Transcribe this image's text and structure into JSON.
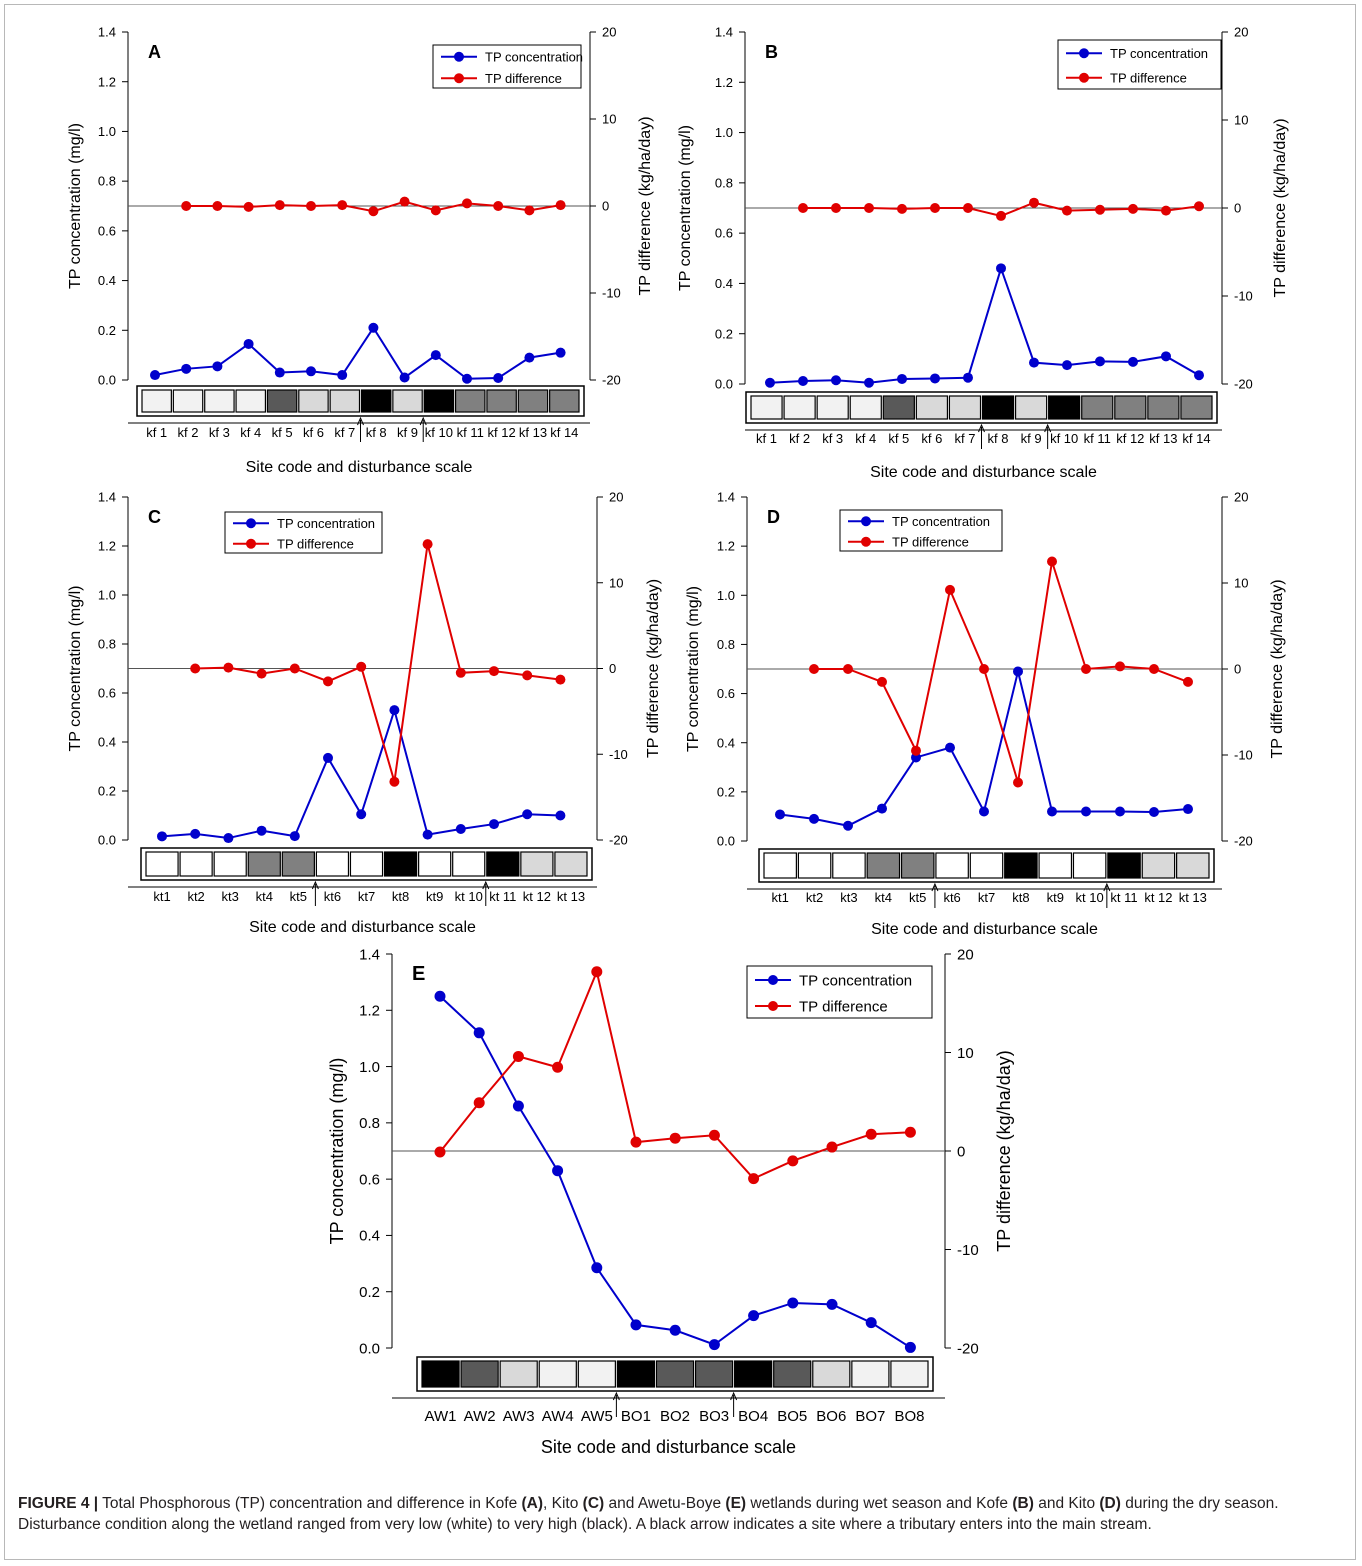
{
  "chart_data": [
    {
      "panel": "A",
      "type": "line",
      "ylabel_left": "TP concentration (mg/l)",
      "ylabel_right": "TP difference (kg/ha/day)",
      "xlabel": "Site code and disturbance scale",
      "ylim_left": [
        0,
        1.4
      ],
      "ylim_right": [
        -20,
        20
      ],
      "yticks_left": [
        "0.0",
        "0.2",
        "0.4",
        "0.6",
        "0.8",
        "1.0",
        "1.2",
        "1.4"
      ],
      "yticks_right": [
        "-20",
        "-10",
        "0",
        "10",
        "20"
      ],
      "legend_position": "top-right",
      "categories": [
        "kf 1",
        "kf 2",
        "kf 3",
        "kf 4",
        "kf 5",
        "kf 6",
        "kf 7",
        "kf 8",
        "kf 9",
        "kf 10",
        "kf 11",
        "kf 12",
        "kf 13",
        "kf 14"
      ],
      "series": [
        {
          "name": "TP concentration",
          "color": "#0000cc",
          "axis": "left",
          "values": [
            0.02,
            0.045,
            0.055,
            0.145,
            0.03,
            0.035,
            0.02,
            0.21,
            0.01,
            0.1,
            0.005,
            0.008,
            0.09,
            0.11
          ]
        },
        {
          "name": "TP difference",
          "color": "#e00000",
          "axis": "right",
          "values": [
            null,
            0,
            0,
            -0.1,
            0.1,
            0,
            0.1,
            -0.6,
            0.5,
            -0.5,
            0.3,
            0,
            -0.5,
            0.1
          ]
        }
      ],
      "disturbance": [
        "#f2f2f2",
        "#f2f2f2",
        "#f2f2f2",
        "#f2f2f2",
        "#595959",
        "#d9d9d9",
        "#d9d9d9",
        "#000000",
        "#d9d9d9",
        "#000000",
        "#808080",
        "#808080",
        "#808080",
        "#808080"
      ],
      "tributary_after": [
        7,
        9
      ]
    },
    {
      "panel": "B",
      "type": "line",
      "ylabel_left": "TP concentration (mg/l)",
      "ylabel_right": "TP difference (kg/ha/day)",
      "xlabel": "Site code and disturbance scale",
      "ylim_left": [
        0,
        1.4
      ],
      "ylim_right": [
        -20,
        20
      ],
      "yticks_left": [
        "0.0",
        "0.2",
        "0.4",
        "0.6",
        "0.8",
        "1.0",
        "1.2",
        "1.4"
      ],
      "yticks_right": [
        "-20",
        "-10",
        "0",
        "10",
        "20"
      ],
      "legend_position": "top-right",
      "categories": [
        "kf 1",
        "kf 2",
        "kf 3",
        "kf 4",
        "kf 5",
        "kf 6",
        "kf 7",
        "kf 8",
        "kf 9",
        "kf 10",
        "kf 11",
        "kf 12",
        "kf 13",
        "kf 14"
      ],
      "series": [
        {
          "name": "TP concentration",
          "color": "#0000cc",
          "axis": "left",
          "values": [
            0.005,
            0.012,
            0.015,
            0.005,
            0.02,
            0.022,
            0.025,
            0.46,
            0.085,
            0.075,
            0.09,
            0.088,
            0.11,
            0.035
          ]
        },
        {
          "name": "TP difference",
          "color": "#e00000",
          "axis": "right",
          "values": [
            null,
            0,
            0,
            0,
            -0.1,
            0,
            0,
            -0.9,
            0.6,
            -0.3,
            -0.2,
            -0.1,
            -0.3,
            0.2
          ]
        }
      ],
      "disturbance": [
        "#f2f2f2",
        "#f2f2f2",
        "#f2f2f2",
        "#f2f2f2",
        "#595959",
        "#d9d9d9",
        "#d9d9d9",
        "#000000",
        "#d9d9d9",
        "#000000",
        "#808080",
        "#808080",
        "#808080",
        "#808080"
      ],
      "tributary_after": [
        7,
        9
      ]
    },
    {
      "panel": "C",
      "type": "line",
      "ylabel_left": "TP concentration (mg/l)",
      "ylabel_right": "TP difference (kg/ha/day)",
      "xlabel": "Site code and disturbance scale",
      "ylim_left": [
        0,
        1.4
      ],
      "ylim_right": [
        -20,
        20
      ],
      "yticks_left": [
        "0.0",
        "0.2",
        "0.4",
        "0.6",
        "0.8",
        "1.0",
        "1.2",
        "1.4"
      ],
      "yticks_right": [
        "-20",
        "-10",
        "0",
        "10",
        "20"
      ],
      "legend_position": "top-center",
      "categories": [
        "kt1",
        "kt2",
        "kt3",
        "kt4",
        "kt5",
        "kt6",
        "kt7",
        "kt8",
        "kt9",
        "kt 10",
        "kt 11",
        "kt 12",
        "kt 13"
      ],
      "series": [
        {
          "name": "TP concentration",
          "color": "#0000cc",
          "axis": "left",
          "values": [
            0.015,
            0.025,
            0.008,
            0.038,
            0.016,
            0.335,
            0.105,
            0.53,
            0.022,
            0.045,
            0.065,
            0.105,
            0.1
          ]
        },
        {
          "name": "TP difference",
          "color": "#e00000",
          "axis": "right",
          "values": [
            null,
            0,
            0.1,
            -0.6,
            0,
            -1.5,
            0.2,
            -13.2,
            14.5,
            -0.5,
            -0.3,
            -0.8,
            -1.3
          ]
        }
      ],
      "disturbance": [
        "#ffffff",
        "#ffffff",
        "#ffffff",
        "#808080",
        "#808080",
        "#ffffff",
        "#ffffff",
        "#000000",
        "#ffffff",
        "#ffffff",
        "#000000",
        "#d9d9d9",
        "#d9d9d9"
      ],
      "tributary_after": [
        5,
        10
      ]
    },
    {
      "panel": "D",
      "type": "line",
      "ylabel_left": "TP concentration (mg/l)",
      "ylabel_right": "TP difference (kg/ha/day)",
      "xlabel": "Site code and disturbance scale",
      "ylim_left": [
        0,
        1.4
      ],
      "ylim_right": [
        -20,
        20
      ],
      "yticks_left": [
        "0.0",
        "0.2",
        "0.4",
        "0.6",
        "0.8",
        "1.0",
        "1.2",
        "1.4"
      ],
      "yticks_right": [
        "-20",
        "-10",
        "0",
        "10",
        "20"
      ],
      "legend_position": "top-center",
      "categories": [
        "kt1",
        "kt2",
        "kt3",
        "kt4",
        "kt5",
        "kt6",
        "kt7",
        "kt8",
        "kt9",
        "kt 10",
        "kt 11",
        "kt 12",
        "kt 13"
      ],
      "series": [
        {
          "name": "TP concentration",
          "color": "#0000cc",
          "axis": "left",
          "values": [
            0.108,
            0.09,
            0.062,
            0.132,
            0.34,
            0.38,
            0.12,
            0.69,
            0.12,
            0.12,
            0.12,
            0.118,
            0.13
          ]
        },
        {
          "name": "TP difference",
          "color": "#e00000",
          "axis": "right",
          "values": [
            null,
            0,
            0,
            -1.5,
            -9.5,
            9.2,
            0,
            -13.2,
            12.5,
            0,
            0.3,
            0,
            -1.5
          ]
        }
      ],
      "disturbance": [
        "#ffffff",
        "#ffffff",
        "#ffffff",
        "#808080",
        "#808080",
        "#ffffff",
        "#ffffff",
        "#000000",
        "#ffffff",
        "#ffffff",
        "#000000",
        "#d9d9d9",
        "#d9d9d9"
      ],
      "tributary_after": [
        5,
        10
      ]
    },
    {
      "panel": "E",
      "type": "line",
      "ylabel_left": "TP concentration (mg/l)",
      "ylabel_right": "TP difference (kg/ha/day)",
      "xlabel": "Site code and disturbance scale",
      "ylim_left": [
        0,
        1.4
      ],
      "ylim_right": [
        -20,
        20
      ],
      "yticks_left": [
        "0.0",
        "0.2",
        "0.4",
        "0.6",
        "0.8",
        "1.0",
        "1.2",
        "1.4"
      ],
      "yticks_right": [
        "-20",
        "-10",
        "0",
        "10",
        "20"
      ],
      "legend_position": "top-right",
      "categories": [
        "AW1",
        "AW2",
        "AW3",
        "AW4",
        "AW5",
        "BO1",
        "BO2",
        "BO3",
        "BO4",
        "BO5",
        "BO6",
        "BO7",
        "BO8"
      ],
      "series": [
        {
          "name": "TP concentration",
          "color": "#0000cc",
          "axis": "left",
          "values": [
            1.25,
            1.12,
            0.86,
            0.63,
            0.285,
            0.082,
            0.063,
            0.012,
            0.115,
            0.16,
            0.155,
            0.09,
            0.002
          ]
        },
        {
          "name": "TP difference",
          "color": "#e00000",
          "axis": "right",
          "values": [
            -0.1,
            4.9,
            9.6,
            8.5,
            18.2,
            0.9,
            1.3,
            1.6,
            -2.8,
            -1.0,
            0.4,
            1.7,
            1.9
          ]
        }
      ],
      "disturbance": [
        "#000000",
        "#595959",
        "#d9d9d9",
        "#f2f2f2",
        "#f2f2f2",
        "#000000",
        "#595959",
        "#595959",
        "#000000",
        "#595959",
        "#d9d9d9",
        "#f2f2f2",
        "#f2f2f2"
      ],
      "tributary_after": [
        5,
        8
      ]
    }
  ],
  "caption": {
    "label": "FIGURE 4 |",
    "parts": [
      {
        "t": " Total Phosphorous (TP) concentration and difference in Kofe ",
        "b": false
      },
      {
        "t": "(A)",
        "b": true
      },
      {
        "t": ", Kito ",
        "b": false
      },
      {
        "t": "(C)",
        "b": true
      },
      {
        "t": " and Awetu-Boye ",
        "b": false
      },
      {
        "t": "(E)",
        "b": true
      },
      {
        "t": " wetlands during wet season and Kofe ",
        "b": false
      },
      {
        "t": "(B)",
        "b": true
      },
      {
        "t": " and Kito ",
        "b": false
      },
      {
        "t": "(D)",
        "b": true
      },
      {
        "t": " during the dry season. Disturbance condition along the wetland ranged from very low (white) to very high (black). A black arrow indicates a site where a tributary enters into the main stream.",
        "b": false
      }
    ]
  }
}
